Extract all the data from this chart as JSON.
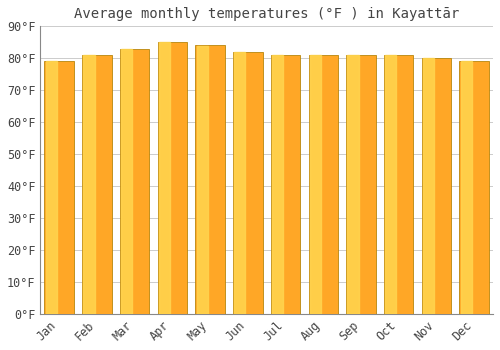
{
  "title": "Average monthly temperatures (°F ) in Kayattār",
  "months": [
    "Jan",
    "Feb",
    "Mar",
    "Apr",
    "May",
    "Jun",
    "Jul",
    "Aug",
    "Sep",
    "Oct",
    "Nov",
    "Dec"
  ],
  "values": [
    79,
    81,
    83,
    85,
    84,
    82,
    81,
    81,
    81,
    81,
    80,
    79
  ],
  "bar_color_main": "#FFA726",
  "bar_color_light": "#FFD54F",
  "bar_edge_color": "#B8860B",
  "background_color": "#FFFFFF",
  "plot_bg_color": "#FFFFFF",
  "grid_color": "#CCCCCC",
  "text_color": "#444444",
  "ylim": [
    0,
    90
  ],
  "yticks": [
    0,
    10,
    20,
    30,
    40,
    50,
    60,
    70,
    80,
    90
  ],
  "ytick_labels": [
    "0°F",
    "10°F",
    "20°F",
    "30°F",
    "40°F",
    "50°F",
    "60°F",
    "70°F",
    "80°F",
    "90°F"
  ],
  "title_fontsize": 10,
  "tick_fontsize": 8.5,
  "bar_width": 0.78
}
